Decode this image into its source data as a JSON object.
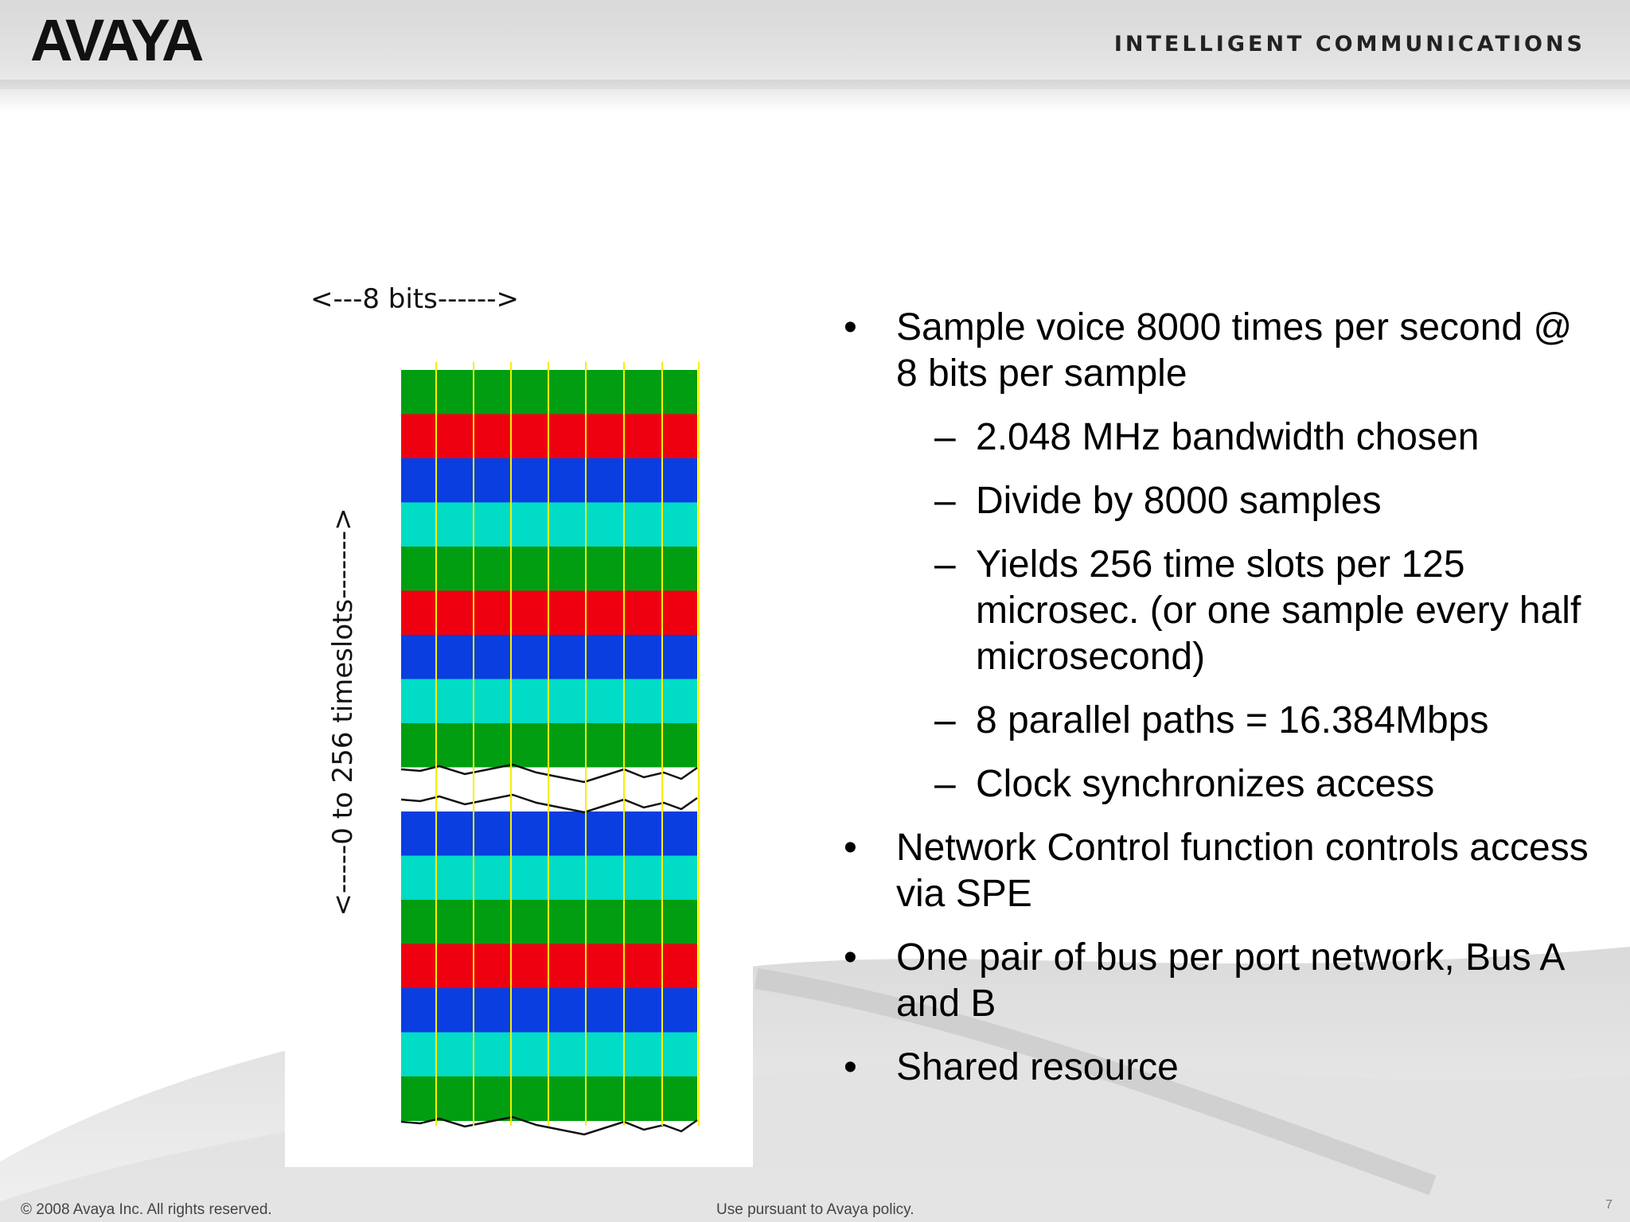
{
  "header": {
    "logo": "AVAYA",
    "tagline": "INTELLIGENT COMMUNICATIONS"
  },
  "diagram": {
    "top_label": "<---8 bits------>",
    "side_label": "<-----0 to 256 timeslots------->",
    "row_colors_upper": [
      "#009e10",
      "#ee0010",
      "#0a3ee0",
      "#00dcc6",
      "#009e10",
      "#ee0010",
      "#0a3ee0",
      "#00dcc6",
      "#009e10"
    ],
    "row_colors_lower": [
      "#0a3ee0",
      "#00dcc6",
      "#009e10",
      "#ee0010",
      "#0a3ee0",
      "#00dcc6",
      "#009e10"
    ],
    "divider_color": "#f5f000",
    "bit_columns": 8
  },
  "bullets": {
    "b1": "Sample voice 8000 times per second @ 8 bits per sample",
    "b1_sub1": "2.048 MHz bandwidth chosen",
    "b1_sub2": "Divide by 8000 samples",
    "b1_sub3": "Yields 256 time slots per 125 microsec. (or one sample every half microsecond)",
    "b1_sub4": "8 parallel paths = 16.384Mbps",
    "b1_sub5": "Clock synchronizes access",
    "b2": "Network Control function controls access via SPE",
    "b3": "One pair of bus per port network, Bus A and B",
    "b4": "Shared resource"
  },
  "footer": {
    "copyright": "© 2008 Avaya Inc. All rights reserved.",
    "policy": "Use pursuant to Avaya policy.",
    "page_number": "7"
  }
}
